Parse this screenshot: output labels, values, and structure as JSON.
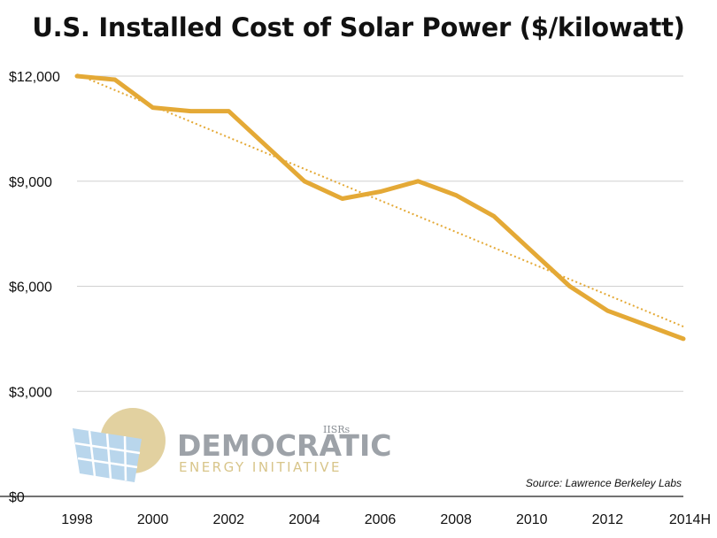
{
  "chart_data": {
    "type": "line",
    "title": "U.S. Installed Cost of Solar Power ($/kilowatt)",
    "xlabel": "",
    "ylabel": "",
    "x": [
      1998,
      1999,
      2000,
      2001,
      2002,
      2003,
      2004,
      2005,
      2006,
      2007,
      2008,
      2009,
      2010,
      2011,
      2012,
      2013,
      2014
    ],
    "x_ticks": [
      "1998",
      "2000",
      "2002",
      "2004",
      "2006",
      "2008",
      "2010",
      "2012",
      "2014H"
    ],
    "y_ticks": [
      "$0",
      "$3,000",
      "$6,000",
      "$9,000",
      "$12,000"
    ],
    "y_tick_values": [
      0,
      3000,
      6000,
      9000,
      12000
    ],
    "ylim": [
      0,
      12000
    ],
    "xlim": [
      1998,
      2014
    ],
    "grid": true,
    "series": [
      {
        "values": [
          12000,
          11900,
          11100,
          11000,
          11000,
          10000,
          9000,
          8500,
          8700,
          9000,
          8600,
          8000,
          7000,
          6000,
          5300,
          4900,
          4500
        ],
        "color": "#e4a936",
        "style": "solid"
      },
      {
        "values_start_end": [
          12050,
          4850
        ],
        "color": "#e4a936",
        "style": "dotted-trendline"
      }
    ],
    "source": "Source: Lawrence Berkeley Labs"
  },
  "logo": {
    "main": "DEMOCRATIC",
    "sub": "ENERGY INITIATIVE",
    "small": "IISRs"
  },
  "colors": {
    "line": "#e4a936",
    "grid": "#d0d0d0",
    "axis": "#444444"
  }
}
